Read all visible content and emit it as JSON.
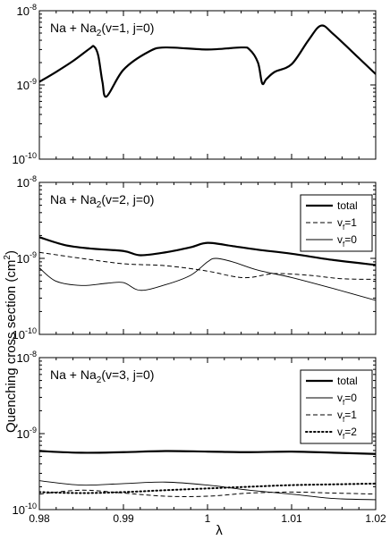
{
  "ylabel": "Quenching cross section (cm²)",
  "ylabel_parts": {
    "main": "Quenching cross section (cm",
    "sup": "2",
    "close": ")"
  },
  "xlabel": "λ",
  "shared_x_ticks": [
    "0.98",
    "0.99",
    "1",
    "1.01",
    "1.02"
  ],
  "chart_data": [
    {
      "type": "line",
      "title": "Na + Na2(v=1, j=0)",
      "title_parts": {
        "pre": "Na + Na",
        "sub": "2",
        "post": "(v=1, j=0)"
      },
      "yscale": "log",
      "xlim": [
        0.98,
        1.02
      ],
      "ylim": [
        1e-10,
        1e-08
      ],
      "y_tick_labels": [
        {
          "base": "10",
          "exp": "-8"
        },
        {
          "base": "10",
          "exp": "-9"
        },
        {
          "base": "10",
          "exp": "-10"
        }
      ],
      "legend": null,
      "series": [
        {
          "style": "thick-solid",
          "x": [
            0.98,
            0.982,
            0.984,
            0.986,
            0.9865,
            0.987,
            0.9875,
            0.988,
            0.99,
            0.993,
            0.995,
            1.0,
            1.004,
            1.005,
            1.006,
            1.0065,
            1.007,
            1.008,
            1.01,
            1.012,
            1.0135,
            1.015,
            1.018,
            1.02
          ],
          "y": [
            1.1e-09,
            1.5e-09,
            2.1e-09,
            3.1e-09,
            3.3e-09,
            2.5e-09,
            1.1e-09,
            7e-10,
            1.6e-09,
            2.8e-09,
            3.2e-09,
            3e-09,
            3.2e-09,
            3e-09,
            2e-09,
            1.05e-09,
            1.2e-09,
            1.5e-09,
            1.9e-09,
            4e-09,
            6.3e-09,
            4.8e-09,
            2.3e-09,
            1.4e-09
          ]
        }
      ]
    },
    {
      "type": "line",
      "title": "Na + Na2(v=2, j=0)",
      "title_parts": {
        "pre": "Na + Na",
        "sub": "2",
        "post": "(v=2, j=0)"
      },
      "yscale": "log",
      "xlim": [
        0.98,
        1.02
      ],
      "ylim": [
        1e-10,
        1e-08
      ],
      "y_tick_labels": [
        {
          "base": "10",
          "exp": "-8"
        },
        {
          "base": "10",
          "exp": "-9"
        },
        {
          "base": "10",
          "exp": "-10"
        }
      ],
      "legend": "top-right",
      "series": [
        {
          "name": "total",
          "style": "thick-solid",
          "x": [
            0.98,
            0.983,
            0.986,
            0.99,
            0.992,
            0.995,
            0.998,
            1.0,
            1.003,
            1.006,
            1.01,
            1.015,
            1.02
          ],
          "y": [
            1.9e-09,
            1.5e-09,
            1.35e-09,
            1.25e-09,
            1.1e-09,
            1.2e-09,
            1.4e-09,
            1.6e-09,
            1.45e-09,
            1.3e-09,
            1.15e-09,
            9.5e-10,
            8.2e-10
          ]
        },
        {
          "name": "vf=1",
          "name_parts": {
            "pre": "v",
            "sub": "f",
            "post": "=1"
          },
          "style": "dashed",
          "x": [
            0.98,
            0.985,
            0.99,
            0.995,
            1.0,
            1.003,
            1.005,
            1.008,
            1.012,
            1.016,
            1.02
          ],
          "y": [
            1.2e-09,
            1e-09,
            8.5e-10,
            8e-10,
            6.8e-10,
            5.8e-10,
            5.6e-10,
            6.3e-10,
            6e-10,
            5.4e-10,
            5.3e-10
          ]
        },
        {
          "name": "vf=0",
          "name_parts": {
            "pre": "v",
            "sub": "f",
            "post": "=0"
          },
          "style": "thin-solid",
          "x": [
            0.98,
            0.982,
            0.985,
            0.988,
            0.99,
            0.992,
            0.995,
            0.998,
            1.0,
            1.001,
            1.003,
            1.006,
            1.01,
            1.015,
            1.02
          ],
          "y": [
            7.5e-10,
            5e-10,
            4.4e-10,
            4.7e-10,
            4.8e-10,
            3.8e-10,
            4.5e-10,
            6e-10,
            9e-10,
            1e-09,
            9e-10,
            7e-10,
            5.6e-10,
            4e-10,
            2.8e-10
          ]
        }
      ]
    },
    {
      "type": "line",
      "title": "Na + Na2(v=3, j=0)",
      "title_parts": {
        "pre": "Na + Na",
        "sub": "2",
        "post": "(v=3, j=0)"
      },
      "yscale": "log",
      "xlim": [
        0.98,
        1.02
      ],
      "ylim": [
        1e-10,
        1e-08
      ],
      "y_tick_labels": [
        {
          "base": "10",
          "exp": "-8"
        },
        {
          "base": "10",
          "exp": "-9"
        },
        {
          "base": "10",
          "exp": "-10"
        }
      ],
      "legend": "top-right",
      "series": [
        {
          "name": "total",
          "style": "thick-solid",
          "x": [
            0.98,
            0.985,
            0.99,
            0.995,
            1.0,
            1.005,
            1.01,
            1.015,
            1.02
          ],
          "y": [
            5.9e-10,
            5.6e-10,
            5.7e-10,
            5.9e-10,
            5.8e-10,
            5.7e-10,
            5.8e-10,
            5.6e-10,
            5.4e-10
          ]
        },
        {
          "name": "vf=0",
          "name_parts": {
            "pre": "v",
            "sub": "f",
            "post": "=0"
          },
          "style": "thin-solid",
          "x": [
            0.98,
            0.985,
            0.99,
            0.995,
            1.0,
            1.005,
            1.01,
            1.015,
            1.02
          ],
          "y": [
            2.4e-10,
            2.1e-10,
            2.2e-10,
            2.3e-10,
            2.1e-10,
            1.8e-10,
            1.6e-10,
            1.4e-10,
            1.35e-10
          ]
        },
        {
          "name": "vf=1",
          "name_parts": {
            "pre": "v",
            "sub": "f",
            "post": "=1"
          },
          "style": "dashed",
          "x": [
            0.98,
            0.985,
            0.99,
            0.995,
            1.0,
            1.005,
            1.01,
            1.015,
            1.02
          ],
          "y": [
            1.6e-10,
            1.8e-10,
            1.65e-10,
            1.5e-10,
            1.5e-10,
            1.65e-10,
            1.7e-10,
            1.65e-10,
            1.6e-10
          ]
        },
        {
          "name": "vf=2",
          "name_parts": {
            "pre": "v",
            "sub": "f",
            "post": "=2"
          },
          "style": "dotted",
          "x": [
            0.98,
            0.985,
            0.99,
            0.995,
            1.0,
            1.005,
            1.01,
            1.015,
            1.02
          ],
          "y": [
            1.7e-10,
            1.65e-10,
            1.7e-10,
            1.8e-10,
            1.9e-10,
            2e-10,
            2.1e-10,
            2.15e-10,
            2.2e-10
          ]
        }
      ]
    }
  ]
}
